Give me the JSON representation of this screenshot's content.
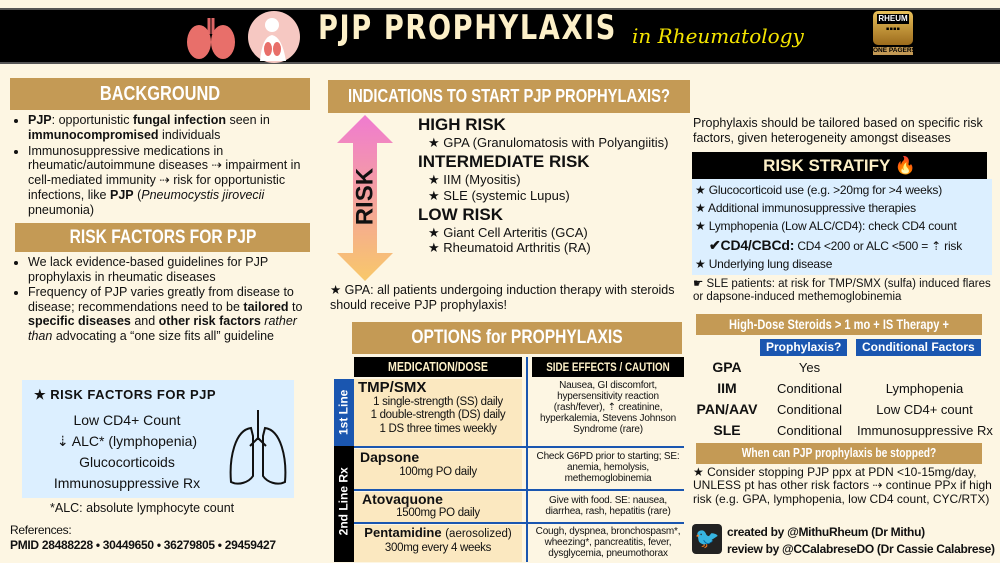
{
  "header": {
    "title": "PJP PROPHYLAXIS",
    "subtitle": "in Rheumatology",
    "logo_top": "RHEUM",
    "logo_bottom": "ONE PAGERS"
  },
  "background": {
    "heading": "BACKGROUND",
    "items": [
      [
        "PJP",
        ": opportunistic ",
        "fungal infection",
        " seen in ",
        "immunocompromised",
        " individuals"
      ],
      [
        "Immunosuppressive medications in rheumatic/autoimmune diseases ⇢ impairment in cell-mediated immunity ⇢ risk for opportunistic infections, like ",
        "PJP",
        " (",
        "Pneumocystis jirovecii",
        " pneumonia)"
      ]
    ]
  },
  "risk_factors": {
    "heading": "RISK FACTORS FOR PJP",
    "items": [
      "We lack evidence-based guidelines for PJP prophylaxis in rheumatic diseases",
      [
        "Frequency of PJP varies greatly from disease to disease; recommendations need to be ",
        "tailored",
        " to ",
        "specific diseases",
        " and ",
        "other risk factors",
        " ",
        "rather than",
        " advocating a “one size fits all” guideline"
      ]
    ],
    "box_title": "★ RISK FACTORS FOR PJP",
    "box_items": [
      "Low CD4+ Count",
      "⇣ ALC* (lymphopenia)",
      "Glucocorticoids",
      "Immunosuppressive Rx"
    ],
    "footnote": "*ALC: absolute lymphocyte count"
  },
  "references": {
    "label": "References",
    "pmids": "PMID 28488228 • 30449650 • 36279805 • 29459427"
  },
  "indications": {
    "heading": "INDICATIONS TO START PJP PROPHYLAXIS?",
    "arrow_label": "RISK",
    "levels": [
      {
        "name": "HIGH RISK",
        "items": [
          "★ GPA (Granulomatosis with Polyangiitis)"
        ]
      },
      {
        "name": "INTERMEDIATE RISK",
        "items": [
          "★ IIM (Myositis)",
          "★ SLE (systemic Lupus)"
        ]
      },
      {
        "name": "LOW RISK",
        "items": [
          "★ Giant Cell Arteritis (GCA)",
          "★ Rheumatoid Arthritis (RA)"
        ]
      }
    ],
    "note": "★ GPA: all patients undergoing induction therapy with steroids should receive PJP prophylaxis!"
  },
  "options": {
    "heading": "OPTIONS for PROPHYLAXIS",
    "col1": "MEDICATION/DOSE",
    "col2": "SIDE EFFECTS / CAUTION",
    "line1": "1st Line",
    "line2": "2nd Line Rx",
    "rows": [
      {
        "drug": "TMP/SMX",
        "dose": [
          "1 single-strength (SS) daily",
          "1 double-strength (DS) daily",
          "1 DS three times weekly"
        ],
        "se": "Nausea, GI discomfort, hypersensitivity reaction (rash/fever), ⇡ creatinine, hyperkalemia, Stevens Johnson Syndrome (rare)"
      },
      {
        "drug": "Dapsone",
        "dose": [
          "100mg PO daily"
        ],
        "se": "Check G6PD prior to starting; SE: anemia, hemolysis, methemoglobinemia"
      },
      {
        "drug": "Atovaquone",
        "dose": [
          "1500mg PO daily"
        ],
        "se": "Give with food. SE: nausea, diarrhea, rash, hepatitis (rare)"
      },
      {
        "drug": "Pentamidine",
        "drug_note": "(aerosolized)",
        "dose": [
          "300mg every 4 weeks"
        ],
        "se": "Cough, dyspnea, bronchospasm*, wheezing*, pancreatitis, fever, dysglycemia, pneumothorax"
      }
    ]
  },
  "right": {
    "intro": "Prophylaxis should be tailored based on specific risk factors, given heterogeneity amongst diseases",
    "stratify_heading": "RISK STRATIFY 🔥",
    "stratify_items": [
      "★ Glucocorticoid use (e.g. >20mg for >4 weeks)",
      "★ Additional immunosuppressive therapies",
      "★ Lymphopenia (Low ALC/CD4): check CD4 count"
    ],
    "cd4_label": "✔CD4/CBCd:",
    "cd4_text": "CD4 <200 or ALC <500 = ⇡ risk",
    "lung": "★ Underlying lung disease",
    "sle_note": "☛ SLE patients: at risk for TMP/SMX (sulfa) induced flares or dapsone-induced methemoglobinemia",
    "steroid_heading": "High-Dose Steroids > 1 mo + IS Therapy +",
    "col_proph": "Prophylaxis?",
    "col_cond": "Conditional Factors",
    "steroid_rows": [
      [
        "GPA",
        "Yes",
        ""
      ],
      [
        "IIM",
        "Conditional",
        "Lymphopenia"
      ],
      [
        "PAN/AAV",
        "Conditional",
        "Low CD4+ count"
      ],
      [
        "SLE",
        "Conditional",
        "Immunosuppressive Rx"
      ]
    ],
    "stop_heading": "When can PJP prophylaxis be stopped?",
    "stop_text": "★ Consider stopping PJP ppx at PDN <10-15mg/day, UNLESS pt has other risk factors ⇢ continue PPx if high risk (e.g. GPA, lymphopenia, low CD4 count, CYC/RTX)",
    "created": "created by @MithuRheum (Dr Mithu)",
    "reviewed": "review by @CCalabreseDO (Dr Cassie Calabrese)"
  }
}
